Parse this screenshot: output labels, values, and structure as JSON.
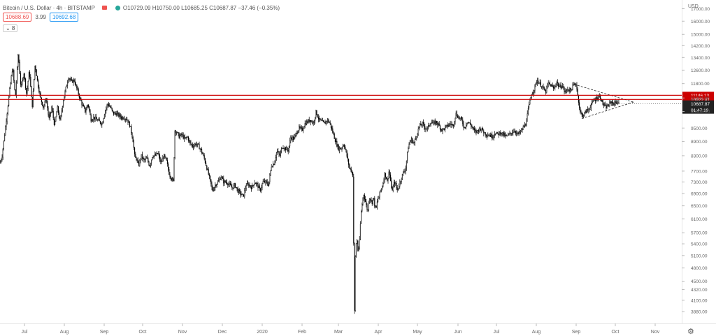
{
  "header": {
    "symbol": "Bitcoin / U.S. Dollar · 4h · BITSTAMP",
    "ohlc": "O10729.09 H10750.00 L10685.25 C10687.87 −37.46 (−0.35%)",
    "bid": "10688.69",
    "spread": "3.99",
    "ask": "10692.68",
    "indicator_toggle": "⌄ 8",
    "colors": {
      "flag": "#ef5350",
      "live": "#26a69a"
    }
  },
  "chart_data": {
    "type": "candlestick",
    "currency": "USD",
    "y_scale": "log",
    "ylim": [
      3700,
      17500
    ],
    "y_ticks": [
      "17000.00",
      "16000.00",
      "15000.00",
      "14200.00",
      "13400.00",
      "12600.00",
      "11800.00",
      "11000.00",
      "10300.00",
      "9500.00",
      "8900.00",
      "8300.00",
      "7700.00",
      "7300.00",
      "6900.00",
      "6500.00",
      "6100.00",
      "5700.00",
      "5400.00",
      "5100.00",
      "4800.00",
      "4500.00",
      "4320.00",
      "4100.00",
      "3880.00"
    ],
    "x_labels": [
      "Jul",
      "Aug",
      "Sep",
      "Oct",
      "Nov",
      "Dec",
      "2020",
      "Feb",
      "Mar",
      "Apr",
      "May",
      "Jun",
      "Jul",
      "Aug",
      "Sep",
      "Oct",
      "Nov"
    ],
    "last_price": "10687.87",
    "countdown": "01:47:19",
    "horizontal_levels": [
      {
        "value": 11146.13,
        "label": "11146.13",
        "color": "#cc0000"
      },
      {
        "value": 10922.41,
        "label": "10922.41",
        "color": "#cc0000"
      }
    ],
    "price_path": [
      [
        0,
        8000
      ],
      [
        3,
        8300
      ],
      [
        8,
        9600
      ],
      [
        14,
        11500
      ],
      [
        18,
        12800
      ],
      [
        22,
        11000
      ],
      [
        26,
        13700
      ],
      [
        30,
        11500
      ],
      [
        34,
        12500
      ],
      [
        38,
        11200
      ],
      [
        42,
        12600
      ],
      [
        46,
        10500
      ],
      [
        50,
        13000
      ],
      [
        54,
        11800
      ],
      [
        58,
        11000
      ],
      [
        62,
        10500
      ],
      [
        66,
        11000
      ],
      [
        70,
        9900
      ],
      [
        74,
        10500
      ],
      [
        78,
        9600
      ],
      [
        82,
        10500
      ],
      [
        86,
        9800
      ],
      [
        90,
        10800
      ],
      [
        94,
        11500
      ],
      [
        98,
        12200
      ],
      [
        102,
        11900
      ],
      [
        106,
        12000
      ],
      [
        110,
        11500
      ],
      [
        114,
        11000
      ],
      [
        118,
        10600
      ],
      [
        122,
        10300
      ],
      [
        126,
        10700
      ],
      [
        130,
        9900
      ],
      [
        134,
        10000
      ],
      [
        138,
        9900
      ],
      [
        142,
        9800
      ],
      [
        146,
        9700
      ],
      [
        150,
        10300
      ],
      [
        154,
        10700
      ],
      [
        158,
        10500
      ],
      [
        162,
        10200
      ],
      [
        166,
        10200
      ],
      [
        170,
        10100
      ],
      [
        174,
        10000
      ],
      [
        178,
        10000
      ],
      [
        182,
        9900
      ],
      [
        186,
        9600
      ],
      [
        190,
        9000
      ],
      [
        193,
        8200
      ],
      [
        195,
        8200
      ],
      [
        198,
        7900
      ],
      [
        202,
        8300
      ],
      [
        206,
        8100
      ],
      [
        210,
        8200
      ],
      [
        214,
        7900
      ],
      [
        218,
        8300
      ],
      [
        222,
        8300
      ],
      [
        226,
        8400
      ],
      [
        230,
        8000
      ],
      [
        234,
        8300
      ],
      [
        238,
        8100
      ],
      [
        242,
        7600
      ],
      [
        246,
        7400
      ],
      [
        248,
        7300
      ],
      [
        250,
        9400
      ],
      [
        253,
        9300
      ],
      [
        256,
        9100
      ],
      [
        260,
        9200
      ],
      [
        264,
        9000
      ],
      [
        268,
        9100
      ],
      [
        272,
        8800
      ],
      [
        276,
        8700
      ],
      [
        280,
        8800
      ],
      [
        284,
        8700
      ],
      [
        288,
        8500
      ],
      [
        292,
        8200
      ],
      [
        296,
        7800
      ],
      [
        300,
        7400
      ],
      [
        304,
        7000
      ],
      [
        308,
        7200
      ],
      [
        312,
        7300
      ],
      [
        316,
        7500
      ],
      [
        320,
        7300
      ],
      [
        324,
        7300
      ],
      [
        328,
        7200
      ],
      [
        332,
        7100
      ],
      [
        336,
        7200
      ],
      [
        340,
        7000
      ],
      [
        344,
        6900
      ],
      [
        348,
        6800
      ],
      [
        352,
        7200
      ],
      [
        356,
        7200
      ],
      [
        360,
        7100
      ],
      [
        364,
        7300
      ],
      [
        368,
        7200
      ],
      [
        372,
        7000
      ],
      [
        376,
        7300
      ],
      [
        380,
        7300
      ],
      [
        384,
        7200
      ],
      [
        388,
        7900
      ],
      [
        392,
        8000
      ],
      [
        396,
        8500
      ],
      [
        400,
        8300
      ],
      [
        404,
        8700
      ],
      [
        408,
        8600
      ],
      [
        412,
        8500
      ],
      [
        416,
        9100
      ],
      [
        420,
        9000
      ],
      [
        424,
        9300
      ],
      [
        428,
        9500
      ],
      [
        432,
        9400
      ],
      [
        436,
        9700
      ],
      [
        440,
        9800
      ],
      [
        444,
        9900
      ],
      [
        448,
        9700
      ],
      [
        452,
        10300
      ],
      [
        456,
        9900
      ],
      [
        460,
        9800
      ],
      [
        464,
        9700
      ],
      [
        468,
        9900
      ],
      [
        472,
        9700
      ],
      [
        476,
        9300
      ],
      [
        480,
        8900
      ],
      [
        484,
        8600
      ],
      [
        488,
        8600
      ],
      [
        492,
        8800
      ],
      [
        496,
        8300
      ],
      [
        500,
        7800
      ],
      [
        503,
        7700
      ],
      [
        505,
        7500
      ],
      [
        506,
        5000
      ],
      [
        507,
        3880
      ],
      [
        508,
        5000
      ],
      [
        510,
        5600
      ],
      [
        512,
        5200
      ],
      [
        514,
        5400
      ],
      [
        516,
        6200
      ],
      [
        518,
        6600
      ],
      [
        520,
        6900
      ],
      [
        522,
        6700
      ],
      [
        524,
        6500
      ],
      [
        526,
        6300
      ],
      [
        528,
        6800
      ],
      [
        530,
        6700
      ],
      [
        532,
        6600
      ],
      [
        534,
        6800
      ],
      [
        536,
        6500
      ],
      [
        538,
        6400
      ],
      [
        540,
        6700
      ],
      [
        542,
        6800
      ],
      [
        544,
        7000
      ],
      [
        546,
        7100
      ],
      [
        548,
        7300
      ],
      [
        550,
        7600
      ],
      [
        552,
        7500
      ],
      [
        554,
        7300
      ],
      [
        556,
        7700
      ],
      [
        558,
        7500
      ],
      [
        560,
        7000
      ],
      [
        562,
        7100
      ],
      [
        564,
        7300
      ],
      [
        566,
        7200
      ],
      [
        568,
        7000
      ],
      [
        572,
        7300
      ],
      [
        576,
        7600
      ],
      [
        580,
        7800
      ],
      [
        584,
        8700
      ],
      [
        588,
        9000
      ],
      [
        592,
        8800
      ],
      [
        596,
        9200
      ],
      [
        600,
        9600
      ],
      [
        604,
        9700
      ],
      [
        608,
        9500
      ],
      [
        612,
        9500
      ],
      [
        616,
        9800
      ],
      [
        620,
        9700
      ],
      [
        624,
        9800
      ],
      [
        628,
        9600
      ],
      [
        632,
        9400
      ],
      [
        636,
        9500
      ],
      [
        640,
        9600
      ],
      [
        644,
        9700
      ],
      [
        648,
        9600
      ],
      [
        652,
        10200
      ],
      [
        656,
        10000
      ],
      [
        660,
        9900
      ],
      [
        664,
        9500
      ],
      [
        668,
        9800
      ],
      [
        672,
        9700
      ],
      [
        676,
        9500
      ],
      [
        680,
        9300
      ],
      [
        684,
        9400
      ],
      [
        688,
        9500
      ],
      [
        692,
        9300
      ],
      [
        696,
        9200
      ],
      [
        700,
        9200
      ],
      [
        704,
        9100
      ],
      [
        708,
        9300
      ],
      [
        712,
        9200
      ],
      [
        716,
        9300
      ],
      [
        720,
        9200
      ],
      [
        724,
        9100
      ],
      [
        728,
        9200
      ],
      [
        732,
        9300
      ],
      [
        736,
        9400
      ],
      [
        740,
        9200
      ],
      [
        744,
        9300
      ],
      [
        748,
        9500
      ],
      [
        752,
        9700
      ],
      [
        756,
        10500
      ],
      [
        760,
        11200
      ],
      [
        764,
        11500
      ],
      [
        768,
        12000
      ],
      [
        772,
        11800
      ],
      [
        776,
        11600
      ],
      [
        780,
        11300
      ],
      [
        784,
        11800
      ],
      [
        788,
        11700
      ],
      [
        792,
        11500
      ],
      [
        796,
        11900
      ],
      [
        800,
        11600
      ],
      [
        804,
        11700
      ],
      [
        808,
        11300
      ],
      [
        812,
        11500
      ],
      [
        816,
        11400
      ],
      [
        820,
        11700
      ],
      [
        824,
        11800
      ],
      [
        826,
        11200
      ],
      [
        828,
        10700
      ],
      [
        830,
        10200
      ],
      [
        834,
        10100
      ],
      [
        838,
        10300
      ],
      [
        842,
        10400
      ],
      [
        846,
        10700
      ],
      [
        850,
        10900
      ],
      [
        854,
        11000
      ],
      [
        858,
        11100
      ],
      [
        862,
        10700
      ],
      [
        866,
        10500
      ],
      [
        870,
        10600
      ],
      [
        874,
        10800
      ],
      [
        878,
        10700
      ],
      [
        882,
        10800
      ],
      [
        886,
        10700
      ]
    ]
  }
}
